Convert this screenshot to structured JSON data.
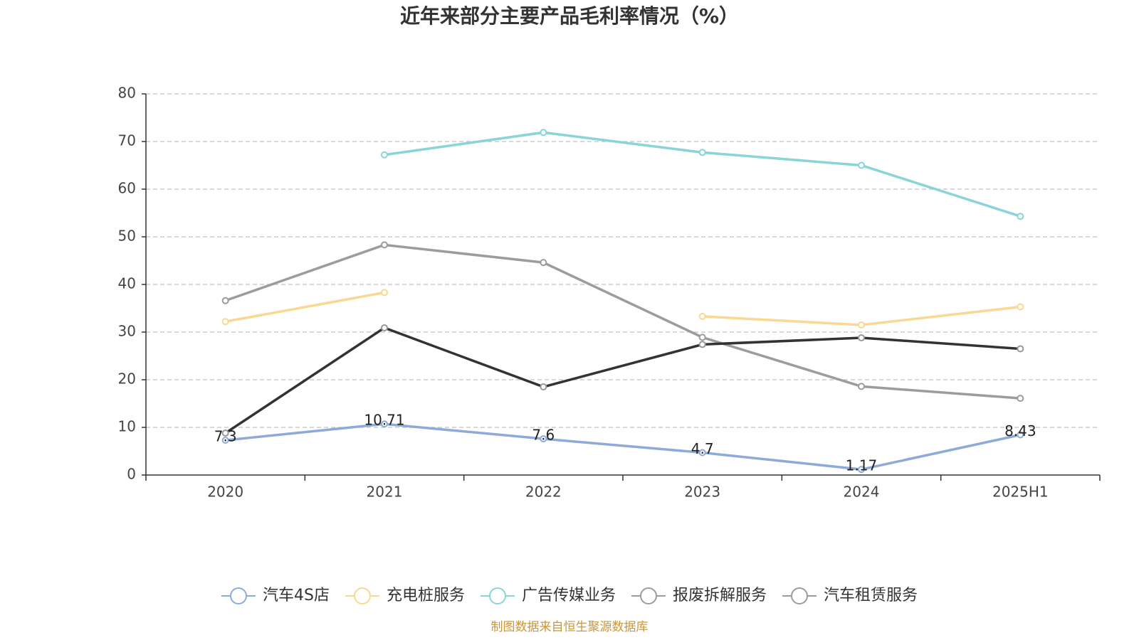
{
  "chart_data": {
    "type": "line",
    "title": "近年来部分主要产品毛利率情况（%）",
    "categories": [
      "2020",
      "2021",
      "2022",
      "2023",
      "2024",
      "2025H1"
    ],
    "series": [
      {
        "name": "汽车4S店",
        "color": "#8eaad8",
        "values": [
          7.3,
          10.71,
          7.6,
          4.7,
          1.17,
          8.43
        ]
      },
      {
        "name": "充电桩服务",
        "color": "#f8d893",
        "values": [
          32.2,
          38.3,
          null,
          33.3,
          31.5,
          35.3
        ]
      },
      {
        "name": "广告传媒业务",
        "color": "#89d4d7",
        "values": [
          null,
          67.2,
          71.9,
          67.7,
          65.0,
          54.3
        ]
      },
      {
        "name": "报废拆解服务",
        "color": "#9c9c9c",
        "values": [
          36.6,
          48.3,
          44.6,
          28.9,
          18.6,
          16.1
        ]
      },
      {
        "name": "汽车租赁服务",
        "color": "#333333",
        "values": [
          8.8,
          30.9,
          18.5,
          27.4,
          28.8,
          26.5
        ]
      }
    ],
    "ylim": [
      0,
      80
    ],
    "yticks": [
      0,
      10,
      20,
      30,
      40,
      50,
      60,
      70,
      80
    ],
    "grid": true,
    "source": "制图数据来自恒生聚源数据库"
  }
}
